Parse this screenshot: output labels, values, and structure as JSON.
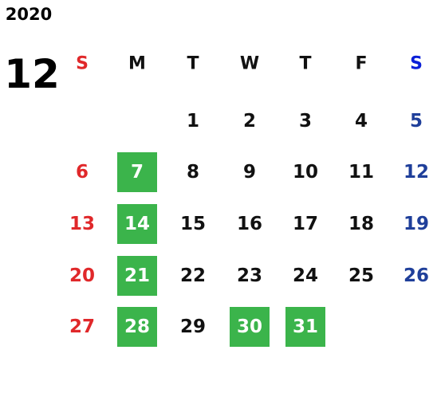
{
  "calendar": {
    "year": "2020",
    "month": "12",
    "weekdays": [
      "S",
      "M",
      "T",
      "W",
      "T",
      "F",
      "S"
    ],
    "weeks": [
      [
        null,
        null,
        {
          "day": 1
        },
        {
          "day": 2
        },
        {
          "day": 3
        },
        {
          "day": 4
        },
        {
          "day": 5
        }
      ],
      [
        {
          "day": 6
        },
        {
          "day": 7,
          "marked": true
        },
        {
          "day": 8
        },
        {
          "day": 9
        },
        {
          "day": 10
        },
        {
          "day": 11
        },
        {
          "day": 12
        }
      ],
      [
        {
          "day": 13
        },
        {
          "day": 14,
          "marked": true
        },
        {
          "day": 15
        },
        {
          "day": 16
        },
        {
          "day": 17
        },
        {
          "day": 18
        },
        {
          "day": 19
        }
      ],
      [
        {
          "day": 20
        },
        {
          "day": 21,
          "marked": true
        },
        {
          "day": 22
        },
        {
          "day": 23
        },
        {
          "day": 24
        },
        {
          "day": 25
        },
        {
          "day": 26
        }
      ],
      [
        {
          "day": 27
        },
        {
          "day": 28,
          "marked": true
        },
        {
          "day": 29
        },
        {
          "day": 30,
          "marked": true
        },
        {
          "day": 31,
          "marked": true
        },
        null,
        null
      ]
    ],
    "colors": {
      "text": "#111111",
      "sunday": "#e0282a",
      "saturday_header": "#0a1fd8",
      "saturday": "#1f3f9a",
      "marked_fill": "#3bb44b",
      "marked_text": "#ffffff"
    }
  }
}
